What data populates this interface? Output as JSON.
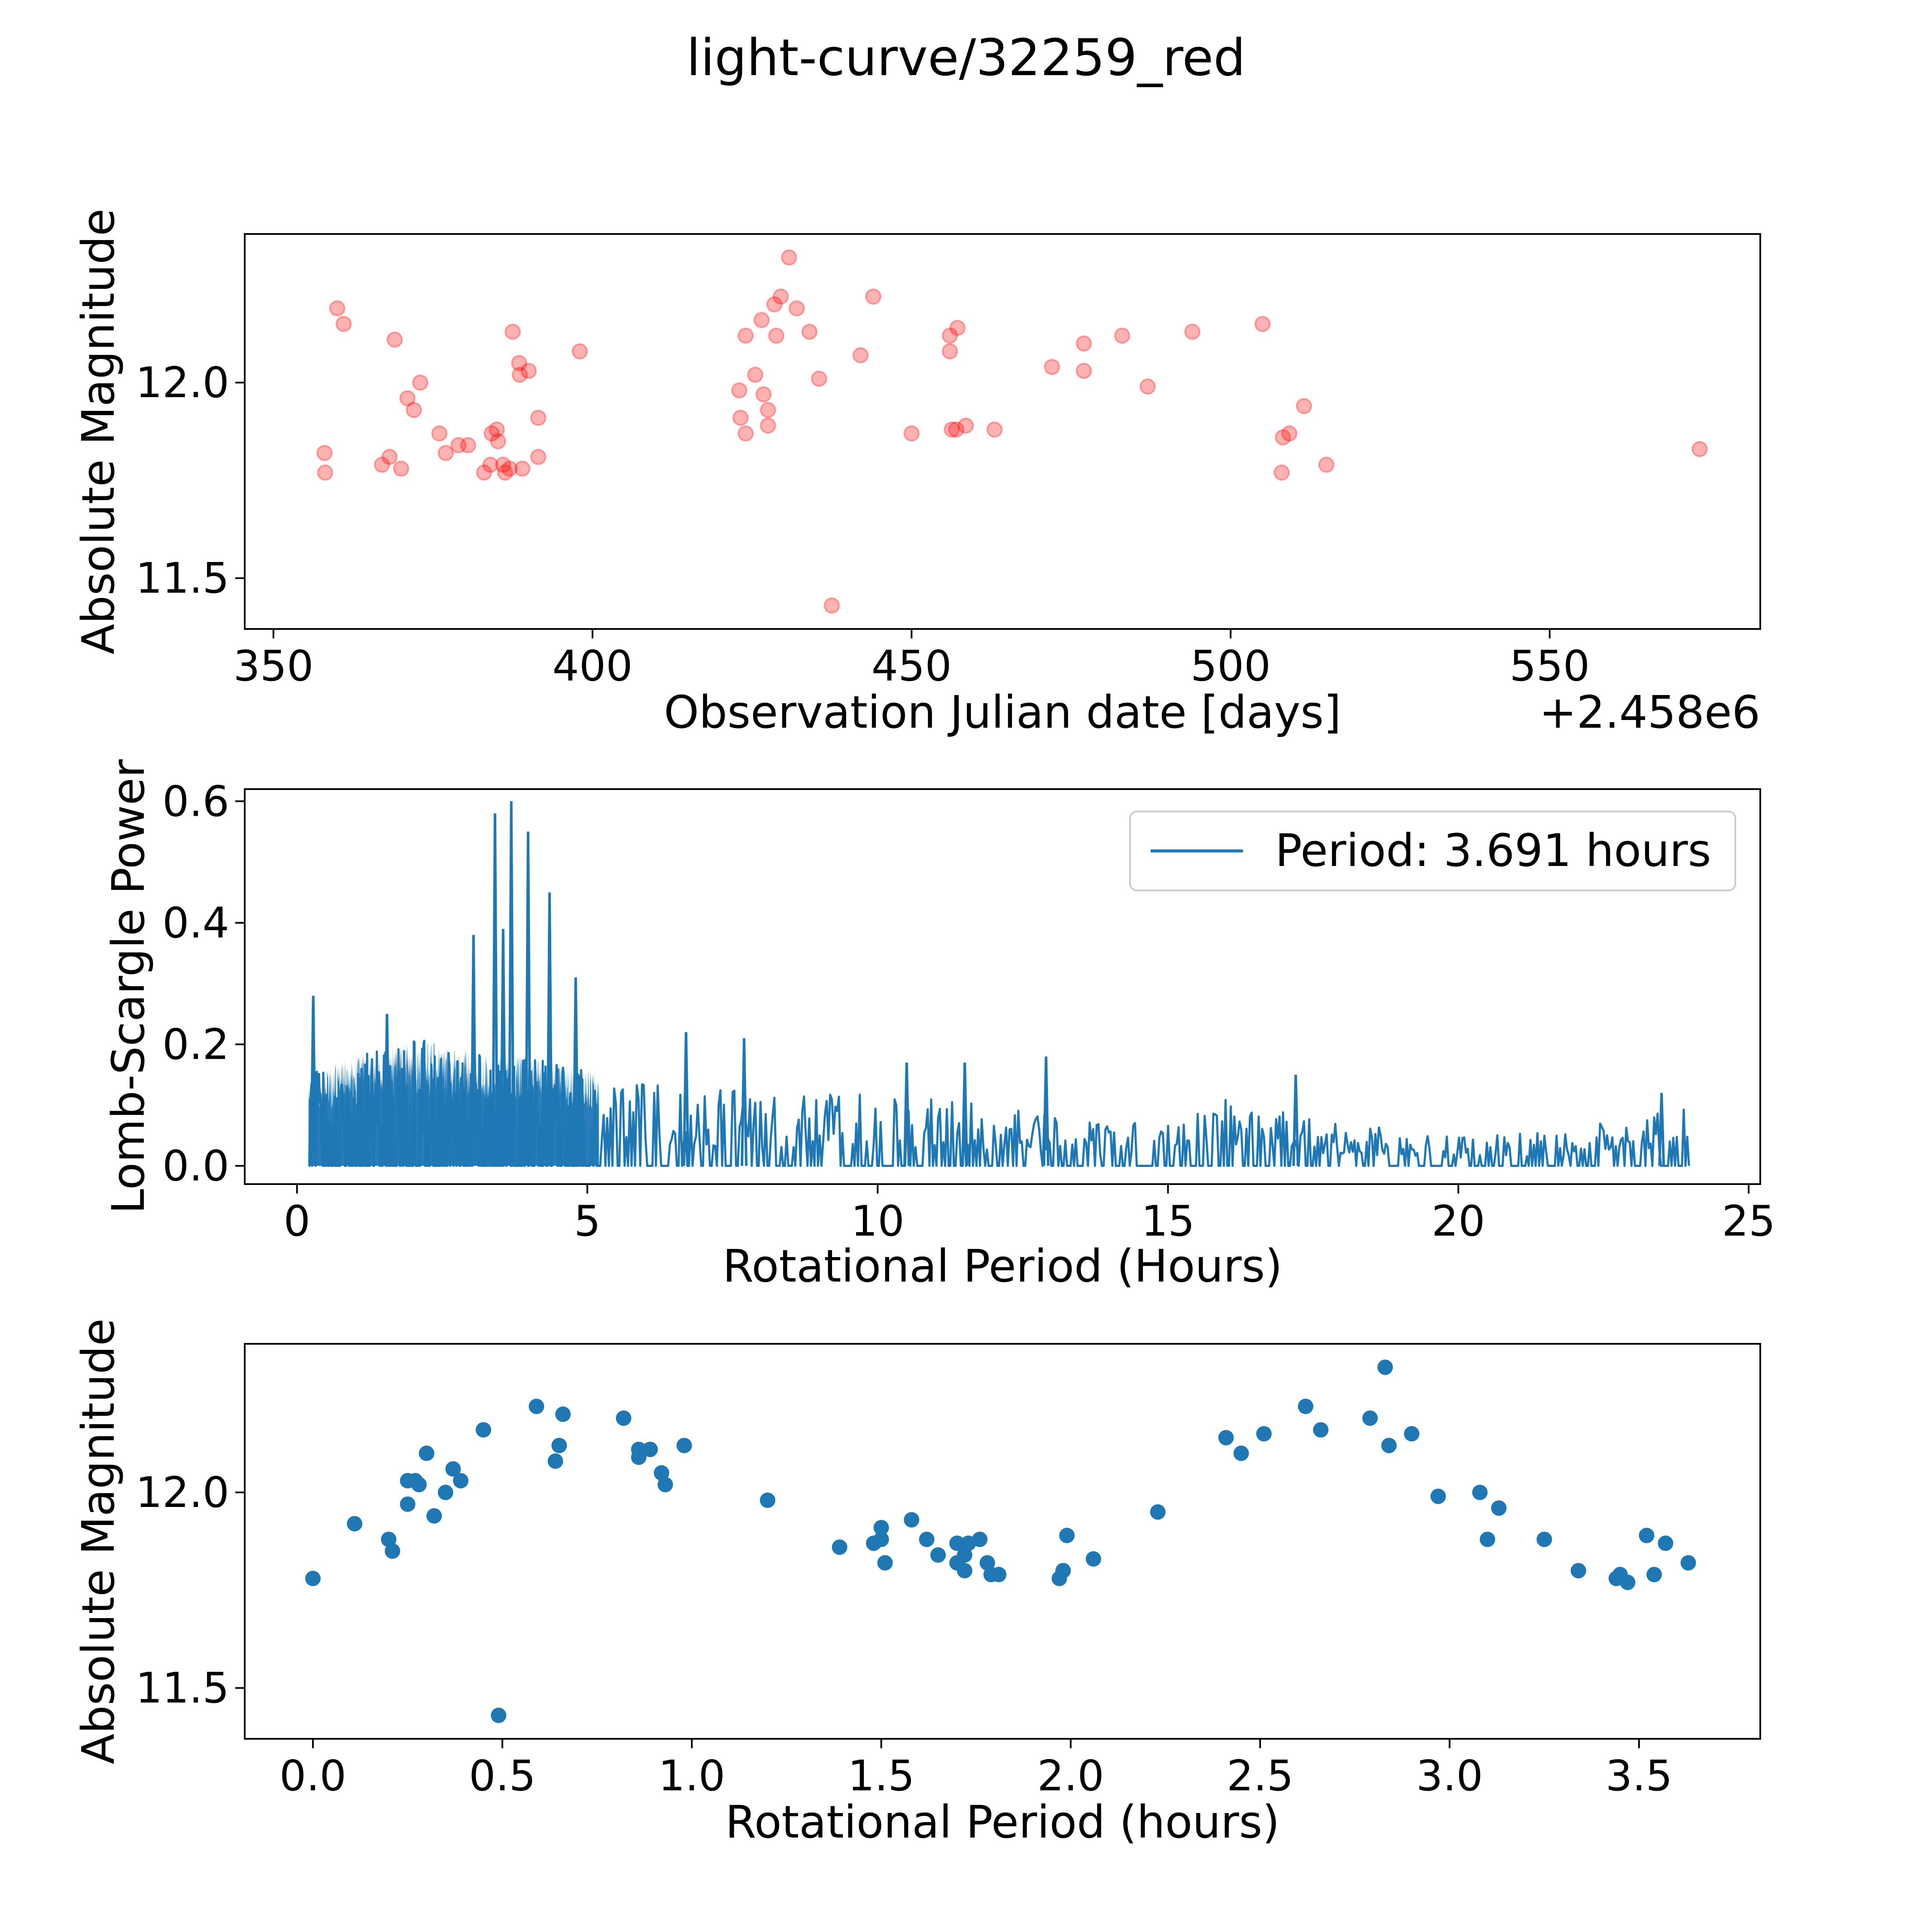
{
  "title": "light-curve/32259_red",
  "colors": {
    "scatter_red": "#ff0000",
    "series_blue": "#1f77b4",
    "axis": "#000000",
    "legend_border": "#cccccc"
  },
  "chart_data": [
    {
      "name": "observations",
      "type": "scatter",
      "xlabel": "Observation Julian date [days]",
      "ylabel": "Absolute Magnitude",
      "offset_label": "+2.458e6",
      "xlim": [
        345.5,
        583.0
      ],
      "ylim": [
        11.37,
        12.38
      ],
      "xticks": [
        350,
        400,
        450,
        500,
        550
      ],
      "yticks": [
        11.5,
        12.0
      ],
      "ytick_labels": [
        "11.5",
        "12.0"
      ],
      "marker_color": "red",
      "marker_alpha": 0.3,
      "points": [
        [
          358.0,
          11.82
        ],
        [
          358.1,
          11.77
        ],
        [
          360.0,
          12.19
        ],
        [
          361.0,
          12.15
        ],
        [
          367.0,
          11.79
        ],
        [
          368.2,
          11.81
        ],
        [
          369.0,
          12.11
        ],
        [
          370.0,
          11.78
        ],
        [
          371.0,
          11.96
        ],
        [
          372.0,
          11.93
        ],
        [
          373.0,
          12.0
        ],
        [
          376.0,
          11.87
        ],
        [
          377.0,
          11.82
        ],
        [
          379.0,
          11.84
        ],
        [
          380.5,
          11.84
        ],
        [
          383.0,
          11.77
        ],
        [
          384.0,
          11.79
        ],
        [
          384.2,
          11.87
        ],
        [
          385.0,
          11.88
        ],
        [
          385.2,
          11.85
        ],
        [
          386.0,
          11.79
        ],
        [
          386.3,
          11.77
        ],
        [
          387.0,
          11.78
        ],
        [
          387.5,
          12.13
        ],
        [
          388.5,
          12.05
        ],
        [
          389.0,
          11.78
        ],
        [
          388.6,
          12.02
        ],
        [
          390.0,
          12.03
        ],
        [
          391.5,
          11.91
        ],
        [
          391.5,
          11.81
        ],
        [
          398.0,
          12.08
        ],
        [
          423.0,
          11.98
        ],
        [
          423.2,
          11.91
        ],
        [
          424.0,
          11.87
        ],
        [
          424.0,
          12.12
        ],
        [
          425.5,
          12.02
        ],
        [
          426.5,
          12.16
        ],
        [
          426.8,
          11.97
        ],
        [
          427.5,
          11.93
        ],
        [
          427.5,
          11.89
        ],
        [
          428.5,
          12.2
        ],
        [
          428.8,
          12.12
        ],
        [
          429.5,
          12.22
        ],
        [
          430.8,
          12.32
        ],
        [
          432.0,
          12.19
        ],
        [
          434.0,
          12.13
        ],
        [
          435.5,
          12.01
        ],
        [
          437.5,
          11.43
        ],
        [
          442.0,
          12.07
        ],
        [
          444.0,
          12.22
        ],
        [
          450.0,
          11.87
        ],
        [
          456.0,
          12.12
        ],
        [
          456.0,
          12.08
        ],
        [
          456.3,
          11.88
        ],
        [
          457.0,
          11.88
        ],
        [
          457.2,
          12.14
        ],
        [
          458.5,
          11.89
        ],
        [
          463.0,
          11.88
        ],
        [
          472.0,
          12.04
        ],
        [
          477.0,
          12.1
        ],
        [
          477.0,
          12.03
        ],
        [
          483.0,
          12.12
        ],
        [
          487.0,
          11.99
        ],
        [
          494.0,
          12.13
        ],
        [
          505.0,
          12.15
        ],
        [
          508.0,
          11.77
        ],
        [
          508.2,
          11.86
        ],
        [
          509.2,
          11.87
        ],
        [
          511.5,
          11.94
        ],
        [
          515.0,
          11.79
        ],
        [
          573.5,
          11.83
        ]
      ]
    },
    {
      "name": "periodogram",
      "type": "line",
      "xlabel": "Rotational Period (Hours)",
      "ylabel": "Lomb-Scargle Power",
      "xlim": [
        -0.9,
        25.2
      ],
      "ylim": [
        -0.03,
        0.62
      ],
      "xticks": [
        0,
        5,
        10,
        15,
        20,
        25
      ],
      "yticks": [
        0.0,
        0.2,
        0.4,
        0.6
      ],
      "ytick_labels": [
        "0.0",
        "0.2",
        "0.4",
        "0.6"
      ],
      "x_range": [
        0.2,
        24.0
      ],
      "legend": "Period: 3.691 hours",
      "legend_loc": "upper right",
      "peak_period": 3.691,
      "peaks": [
        [
          0.28,
          0.28
        ],
        [
          1.55,
          0.25
        ],
        [
          3.04,
          0.38
        ],
        [
          3.41,
          0.58
        ],
        [
          3.55,
          0.39
        ],
        [
          3.69,
          0.6
        ],
        [
          3.98,
          0.55
        ],
        [
          4.35,
          0.45
        ],
        [
          4.8,
          0.31
        ],
        [
          6.7,
          0.22
        ],
        [
          7.7,
          0.21
        ],
        [
          10.5,
          0.17
        ],
        [
          11.5,
          0.17
        ],
        [
          12.9,
          0.18
        ],
        [
          17.2,
          0.15
        ],
        [
          23.5,
          0.12
        ]
      ],
      "envelope": [
        [
          0.2,
          0.15
        ],
        [
          1.0,
          0.18
        ],
        [
          2.0,
          0.21
        ],
        [
          3.0,
          0.19
        ],
        [
          4.0,
          0.18
        ],
        [
          5.0,
          0.16
        ],
        [
          6.0,
          0.14
        ],
        [
          7.0,
          0.13
        ],
        [
          8.0,
          0.12
        ],
        [
          10.0,
          0.12
        ],
        [
          12.0,
          0.1
        ],
        [
          14.0,
          0.07
        ],
        [
          16.0,
          0.11
        ],
        [
          18.0,
          0.07
        ],
        [
          20.0,
          0.05
        ],
        [
          22.0,
          0.06
        ],
        [
          24.0,
          0.11
        ]
      ]
    },
    {
      "name": "folded",
      "type": "scatter",
      "xlabel": "Rotational Period (hours)",
      "ylabel": "Absolute Magnitude",
      "xlim": [
        -0.18,
        3.82
      ],
      "ylim": [
        11.37,
        12.38
      ],
      "xticks": [
        0.0,
        0.5,
        1.0,
        1.5,
        2.0,
        2.5,
        3.0,
        3.5
      ],
      "xtick_labels": [
        "0.0",
        "0.5",
        "1.0",
        "1.5",
        "2.0",
        "2.5",
        "3.0",
        "3.5"
      ],
      "yticks": [
        11.5,
        12.0
      ],
      "ytick_labels": [
        "11.5",
        "12.0"
      ],
      "marker_color": "#1f77b4",
      "points": [
        [
          0.0,
          11.78
        ],
        [
          0.11,
          11.92
        ],
        [
          0.2,
          11.88
        ],
        [
          0.21,
          11.85
        ],
        [
          0.25,
          11.97
        ],
        [
          0.25,
          12.03
        ],
        [
          0.27,
          12.03
        ],
        [
          0.28,
          12.02
        ],
        [
          0.3,
          12.1
        ],
        [
          0.32,
          11.94
        ],
        [
          0.35,
          12.0
        ],
        [
          0.37,
          12.06
        ],
        [
          0.39,
          12.03
        ],
        [
          0.45,
          12.16
        ],
        [
          0.49,
          11.43
        ],
        [
          0.59,
          12.22
        ],
        [
          0.64,
          12.08
        ],
        [
          0.65,
          12.12
        ],
        [
          0.66,
          12.2
        ],
        [
          0.82,
          12.19
        ],
        [
          0.86,
          12.11
        ],
        [
          0.86,
          12.09
        ],
        [
          0.89,
          12.11
        ],
        [
          0.92,
          12.05
        ],
        [
          0.93,
          12.02
        ],
        [
          0.98,
          12.12
        ],
        [
          1.2,
          11.98
        ],
        [
          1.39,
          11.86
        ],
        [
          1.48,
          11.87
        ],
        [
          1.5,
          11.91
        ],
        [
          1.5,
          11.88
        ],
        [
          1.51,
          11.82
        ],
        [
          1.58,
          11.93
        ],
        [
          1.62,
          11.88
        ],
        [
          1.65,
          11.84
        ],
        [
          1.7,
          11.87
        ],
        [
          1.7,
          11.82
        ],
        [
          1.72,
          11.84
        ],
        [
          1.72,
          11.8
        ],
        [
          1.73,
          11.87
        ],
        [
          1.76,
          11.88
        ],
        [
          1.78,
          11.82
        ],
        [
          1.79,
          11.79
        ],
        [
          1.81,
          11.79
        ],
        [
          1.97,
          11.78
        ],
        [
          1.98,
          11.8
        ],
        [
          1.99,
          11.89
        ],
        [
          2.06,
          11.83
        ],
        [
          2.23,
          11.95
        ],
        [
          2.41,
          12.14
        ],
        [
          2.45,
          12.1
        ],
        [
          2.51,
          12.15
        ],
        [
          2.62,
          12.22
        ],
        [
          2.66,
          12.16
        ],
        [
          2.79,
          12.19
        ],
        [
          2.83,
          12.32
        ],
        [
          2.84,
          12.12
        ],
        [
          2.9,
          12.15
        ],
        [
          2.97,
          11.99
        ],
        [
          3.08,
          12.0
        ],
        [
          3.1,
          11.88
        ],
        [
          3.13,
          11.96
        ],
        [
          3.25,
          11.88
        ],
        [
          3.34,
          11.8
        ],
        [
          3.44,
          11.78
        ],
        [
          3.45,
          11.79
        ],
        [
          3.47,
          11.77
        ],
        [
          3.52,
          11.89
        ],
        [
          3.54,
          11.79
        ],
        [
          3.57,
          11.87
        ],
        [
          3.63,
          11.82
        ]
      ]
    }
  ]
}
